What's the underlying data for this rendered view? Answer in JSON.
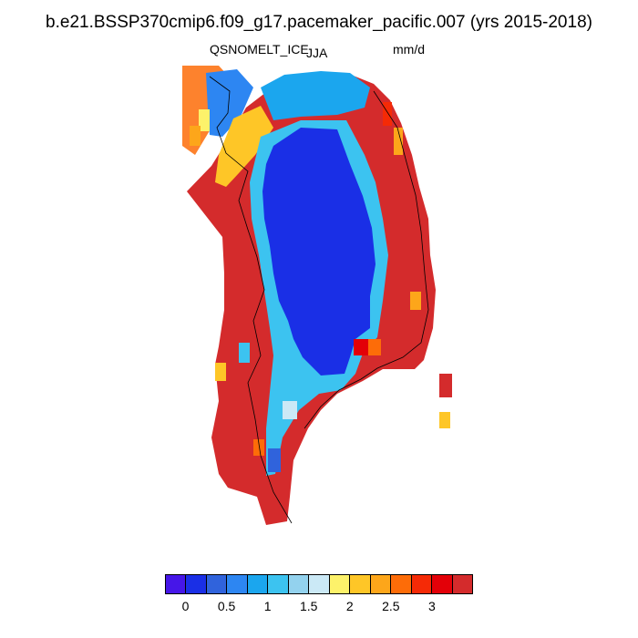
{
  "title": "b.e21.BSSP370cmip6.f09_g17.pacemaker_pacific.007 (yrs 2015-2018)",
  "variable": "QSNOMELT_ICE",
  "season": "JJA",
  "units": "mm/d",
  "colorbar": {
    "colors": [
      "#4616e8",
      "#1a2fe6",
      "#3063dc",
      "#2d86f2",
      "#1ba6ee",
      "#3cc3f0",
      "#93d2ee",
      "#cbe9f6",
      "#fdf26a",
      "#fec627",
      "#fda61a",
      "#fd6c08",
      "#f52a06",
      "#e30008",
      "#d42b2c"
    ],
    "labels": [
      "0",
      "0.5",
      "1",
      "1.5",
      "2",
      "2.5",
      "3"
    ]
  }
}
